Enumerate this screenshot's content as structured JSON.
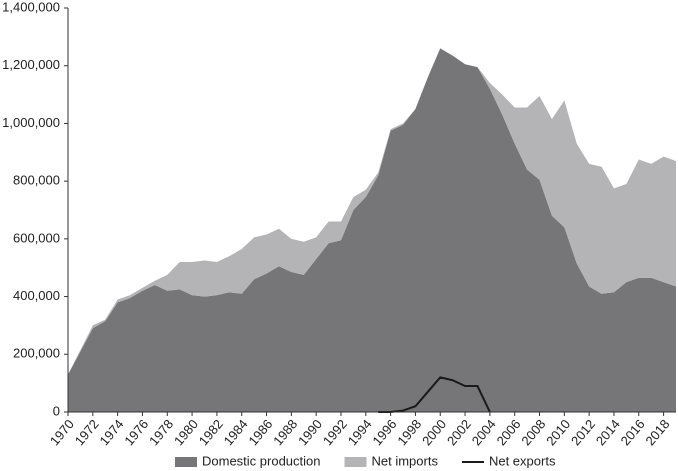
{
  "chart_data": {
    "type": "stacked-area",
    "x": [
      1970,
      1971,
      1972,
      1973,
      1974,
      1975,
      1976,
      1977,
      1978,
      1979,
      1980,
      1981,
      1982,
      1983,
      1984,
      1985,
      1986,
      1987,
      1988,
      1989,
      1990,
      1991,
      1992,
      1993,
      1994,
      1995,
      1996,
      1997,
      1998,
      1999,
      2000,
      2001,
      2002,
      2003,
      2004,
      2005,
      2006,
      2007,
      2008,
      2009,
      2010,
      2011,
      2012,
      2013,
      2014,
      2015,
      2016,
      2017,
      2018,
      2019
    ],
    "series": [
      {
        "name": "Domestic production",
        "color": "#767679",
        "stack": true,
        "values": [
          130000,
          210000,
          290000,
          315000,
          380000,
          395000,
          420000,
          440000,
          420000,
          425000,
          405000,
          400000,
          405000,
          415000,
          410000,
          460000,
          480000,
          505000,
          485000,
          475000,
          530000,
          585000,
          595000,
          700000,
          745000,
          820000,
          975000,
          995000,
          1050000,
          1160000,
          1260000,
          1235000,
          1205000,
          1195000,
          1120000,
          1030000,
          930000,
          840000,
          805000,
          680000,
          640000,
          515000,
          435000,
          410000,
          415000,
          450000,
          465000,
          465000,
          450000,
          435000
        ]
      },
      {
        "name": "Net imports",
        "color": "#b4b4b6",
        "stack": true,
        "values": [
          0,
          5000,
          10000,
          5000,
          10000,
          10000,
          10000,
          15000,
          55000,
          95000,
          115000,
          125000,
          115000,
          125000,
          155000,
          145000,
          135000,
          130000,
          115000,
          115000,
          75000,
          75000,
          65000,
          45000,
          25000,
          10000,
          5000,
          5000,
          0,
          0,
          0,
          0,
          0,
          0,
          20000,
          70000,
          125000,
          215000,
          290000,
          335000,
          440000,
          415000,
          425000,
          440000,
          360000,
          340000,
          410000,
          395000,
          435000,
          435000
        ]
      },
      {
        "name": "Net exports",
        "color": "#1a1a1a",
        "stack": false,
        "values": [
          null,
          null,
          null,
          null,
          null,
          null,
          null,
          null,
          null,
          null,
          null,
          null,
          null,
          null,
          null,
          null,
          null,
          null,
          null,
          null,
          null,
          null,
          null,
          null,
          null,
          0,
          0,
          5000,
          20000,
          70000,
          120000,
          110000,
          90000,
          90000,
          0,
          null,
          null,
          null,
          null,
          null,
          null,
          null,
          null,
          null,
          null,
          null,
          null,
          null,
          null,
          null
        ]
      }
    ],
    "xlim": [
      1970,
      2019
    ],
    "xticks": [
      1970,
      1972,
      1974,
      1976,
      1978,
      1980,
      1982,
      1984,
      1986,
      1988,
      1990,
      1992,
      1994,
      1996,
      1998,
      2000,
      2002,
      2004,
      2006,
      2008,
      2010,
      2012,
      2014,
      2016,
      2018
    ],
    "ylim": [
      0,
      1400000
    ],
    "yticks": [
      0,
      {
        "value": 200000,
        "label": "200,000"
      },
      {
        "value": 400000,
        "label": "400,000"
      },
      {
        "value": 600000,
        "label": "600,000"
      },
      {
        "value": 800000,
        "label": "800,000"
      },
      {
        "value": 1000000,
        "label": "1,000,000"
      },
      {
        "value": 1200000,
        "label": "1,200,000"
      },
      {
        "value": 1400000,
        "label": "1,400,000"
      }
    ],
    "legend": "bottom"
  }
}
